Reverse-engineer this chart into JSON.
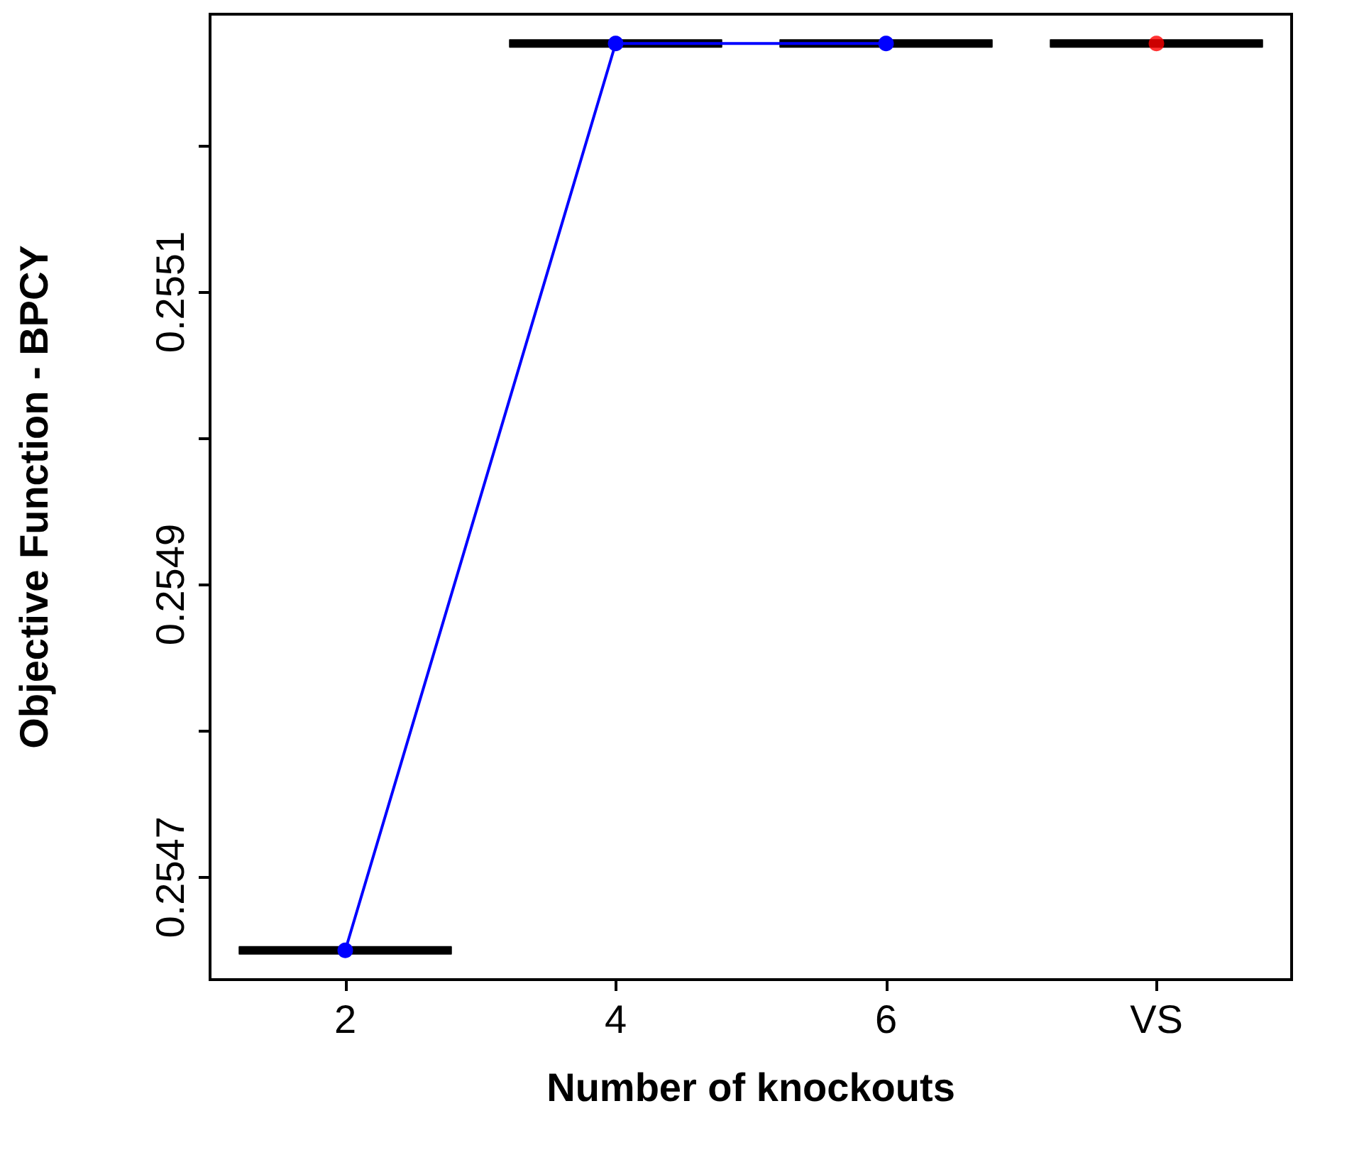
{
  "chart_data": {
    "type": "box",
    "xlabel": "Number of knockouts",
    "ylabel": "Objective Function - BPCY",
    "categories": [
      "2",
      "4",
      "6",
      "VS"
    ],
    "boxes": [
      {
        "low": 0.25465,
        "q1": 0.25465,
        "median": 0.25465,
        "q3": 0.25465,
        "high": 0.25465
      },
      {
        "low": 0.25527,
        "q1": 0.25527,
        "median": 0.25527,
        "q3": 0.25527,
        "high": 0.25527
      },
      {
        "low": 0.25527,
        "q1": 0.25527,
        "median": 0.25527,
        "q3": 0.25527,
        "high": 0.25527
      },
      {
        "low": 0.25527,
        "q1": 0.25527,
        "median": 0.25527,
        "q3": 0.25527,
        "high": 0.25527
      }
    ],
    "series": [
      {
        "type": "line",
        "color": "#0000ff",
        "marker": "circle",
        "values": [
          0.25465,
          0.25527,
          0.25527,
          null
        ]
      },
      {
        "type": "scatter",
        "color": "#ff0000",
        "marker": "circle",
        "values": [
          null,
          null,
          null,
          0.25527
        ]
      }
    ],
    "ylim": [
      0.25463,
      0.25529
    ],
    "yticks": [
      0.2547,
      {
        "value": 0.2548,
        "label": null
      },
      0.2549,
      {
        "value": 0.255,
        "label": null
      },
      0.2551,
      {
        "value": 0.2552,
        "label": null
      }
    ],
    "grid": false
  }
}
